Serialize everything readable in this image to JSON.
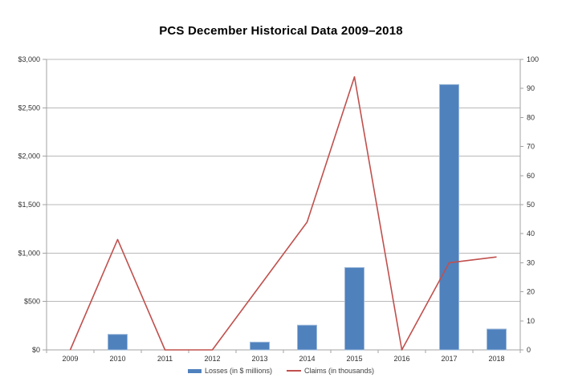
{
  "chart_data": {
    "type": "combo (bar + line, dual axis)",
    "title": "PCS December Historical Data 2009–2018",
    "categories": [
      "2009",
      "2010",
      "2011",
      "2012",
      "2013",
      "2014",
      "2015",
      "2016",
      "2017",
      "2018"
    ],
    "series": [
      {
        "name": "Losses (in $ millions)",
        "type": "bar",
        "axis": "left",
        "color": "#4f81bd",
        "border_color": "#9ab7d8",
        "values": [
          0,
          160,
          0,
          0,
          80,
          255,
          850,
          0,
          2740,
          215
        ]
      },
      {
        "name": "Claims (in thousands)",
        "type": "line",
        "axis": "right",
        "color": "#c0504d",
        "values": [
          0,
          38,
          0,
          0,
          22,
          44,
          94,
          0,
          30,
          32
        ]
      }
    ],
    "left_axis": {
      "min": 0,
      "max": 3000,
      "step": 500,
      "labels": [
        "$0",
        "$500",
        "$1,000",
        "$1,500",
        "$2,000",
        "$2,500",
        "$3,000"
      ]
    },
    "right_axis": {
      "min": 0,
      "max": 100,
      "step": 10,
      "labels": [
        "0",
        "10",
        "20",
        "30",
        "40",
        "50",
        "60",
        "70",
        "80",
        "90",
        "100"
      ]
    },
    "grid": "horizontal gridlines at left-axis 500 steps",
    "legend_position": "bottom-center",
    "colors": {
      "gridline": "#b9b9b9",
      "axis_line": "#a3a3a3",
      "label_text": "#303030",
      "background": "#ffffff"
    }
  }
}
